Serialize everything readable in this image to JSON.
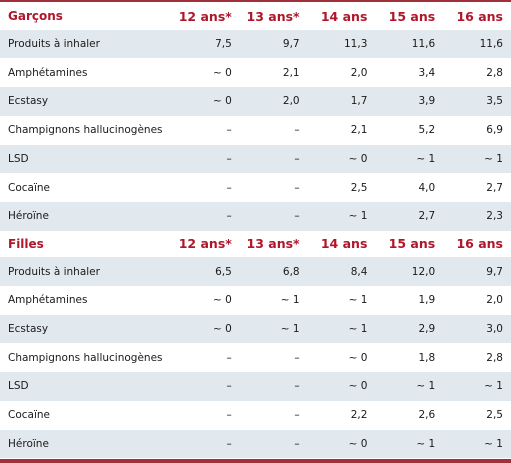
{
  "columns": [
    "12 ans*",
    "13 ans*",
    "14 ans",
    "15 ans",
    "16 ans"
  ],
  "sections": [
    {
      "title": "Garçons",
      "rows": [
        {
          "label": "Produits à inhaler",
          "values": [
            "7,5",
            "9,7",
            "11,3",
            "11,6",
            "11,6"
          ]
        },
        {
          "label": "Amphétamines",
          "values": [
            "~ 0",
            "2,1",
            "2,0",
            "3,4",
            "2,8"
          ]
        },
        {
          "label": "Ecstasy",
          "values": [
            "~ 0",
            "2,0",
            "1,7",
            "3,9",
            "3,5"
          ]
        },
        {
          "label": "Champignons hallucinogènes",
          "values": [
            "–",
            "–",
            "2,1",
            "5,2",
            "6,9"
          ]
        },
        {
          "label": "LSD",
          "values": [
            "–",
            "–",
            "~ 0",
            "~ 1",
            "~ 1"
          ]
        },
        {
          "label": "Cocaïne",
          "values": [
            "–",
            "–",
            "2,5",
            "4,0",
            "2,7"
          ]
        },
        {
          "label": "Héroïne",
          "values": [
            "–",
            "–",
            "~ 1",
            "2,7",
            "2,3"
          ]
        }
      ]
    },
    {
      "title": "Filles",
      "rows": [
        {
          "label": "Produits à inhaler",
          "values": [
            "6,5",
            "6,8",
            "8,4",
            "12,0",
            "9,7"
          ]
        },
        {
          "label": "Amphétamines",
          "values": [
            "~ 0",
            "~ 1",
            "~ 1",
            "1,9",
            "2,0"
          ]
        },
        {
          "label": "Ecstasy",
          "values": [
            "~ 0",
            "~ 1",
            "~ 1",
            "2,9",
            "3,0"
          ]
        },
        {
          "label": "Champignons hallucinogènes",
          "values": [
            "–",
            "–",
            "~ 0",
            "1,8",
            "2,8"
          ]
        },
        {
          "label": "LSD",
          "values": [
            "–",
            "–",
            "~ 0",
            "~ 1",
            "~ 1"
          ]
        },
        {
          "label": "Cocaïne",
          "values": [
            "–",
            "–",
            "2,2",
            "2,6",
            "2,5"
          ]
        },
        {
          "label": "Héroïne",
          "values": [
            "–",
            "–",
            "~ 0",
            "~ 1",
            "~ 1"
          ]
        }
      ]
    }
  ]
}
